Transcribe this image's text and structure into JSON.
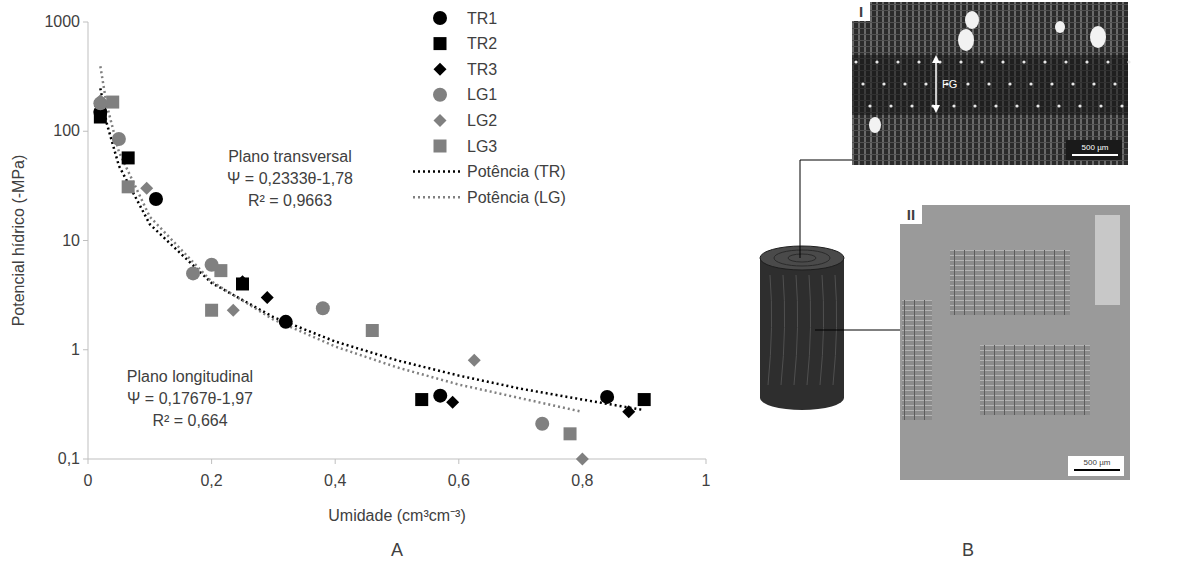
{
  "chart_data": {
    "type": "scatter",
    "x_label": "Umidade (cm³cm⁻³)",
    "y_label": "Potencial hídrico (-MPa)",
    "log": "y",
    "grid": false,
    "legend": "top-right",
    "xlim": [
      0,
      1
    ],
    "xticks": [
      0,
      {
        "value": 0.2,
        "label": "0,2"
      },
      {
        "value": 0.4,
        "label": "0,4"
      },
      {
        "value": 0.6,
        "label": "0,6"
      },
      {
        "value": 0.8,
        "label": "0,8"
      },
      1
    ],
    "ylim": [
      0.1,
      1000
    ],
    "yticks": [
      {
        "value": 0.1,
        "label": "0,1"
      },
      1,
      10,
      100,
      1000
    ],
    "series": [
      {
        "name": "TR1",
        "color": "#000000",
        "marker": "circle",
        "x": [
          0.02,
          0.11,
          0.32,
          0.57,
          0.84
        ],
        "values": [
          150,
          24,
          1.8,
          0.38,
          0.37
        ]
      },
      {
        "name": "TR2",
        "color": "#000000",
        "marker": "square",
        "x": [
          0.02,
          0.065,
          0.25,
          0.54,
          0.9
        ],
        "values": [
          135,
          57,
          4,
          0.35,
          0.35
        ]
      },
      {
        "name": "TR3",
        "color": "#000000",
        "marker": "diamond",
        "x": [
          0.02,
          0.25,
          0.29,
          0.59,
          0.875
        ],
        "values": [
          170,
          4.2,
          3,
          0.33,
          0.27
        ]
      },
      {
        "name": "LG1",
        "color": "#808080",
        "marker": "circle",
        "x": [
          0.02,
          0.05,
          0.17,
          0.2,
          0.38,
          0.735
        ],
        "values": [
          180,
          85,
          5,
          6,
          2.4,
          0.21
        ]
      },
      {
        "name": "LG2",
        "color": "#808080",
        "marker": "diamond",
        "x": [
          0.02,
          0.095,
          0.235,
          0.625,
          0.8
        ],
        "values": [
          190,
          30,
          2.3,
          0.8,
          0.1
        ]
      },
      {
        "name": "LG3",
        "color": "#808080",
        "marker": "square",
        "x": [
          0.04,
          0.065,
          0.2,
          0.215,
          0.46,
          0.78
        ],
        "values": [
          185,
          31,
          2.3,
          5.3,
          1.5,
          0.17
        ]
      },
      {
        "name": "Potência (TR)",
        "type": "line",
        "line_style": "dotted",
        "marker": "none",
        "color": "#000000",
        "x": [
          0.02,
          0.03,
          0.05,
          0.1,
          0.2,
          0.3,
          0.4,
          0.5,
          0.6,
          0.7,
          0.8,
          0.9
        ],
        "values": [
          247,
          120,
          48.3,
          14.1,
          4.09,
          1.99,
          1.19,
          0.8,
          0.58,
          0.44,
          0.35,
          0.28
        ]
      },
      {
        "name": "Potência (LG)",
        "type": "line",
        "line_style": "dotted",
        "marker": "none",
        "color": "#808080",
        "x": [
          0.02,
          0.03,
          0.05,
          0.1,
          0.2,
          0.3,
          0.4,
          0.5,
          0.6,
          0.7,
          0.8
        ],
        "values": [
          393,
          177,
          64.7,
          16.5,
          4.21,
          1.89,
          1.07,
          0.69,
          0.48,
          0.36,
          0.27
        ]
      }
    ],
    "annotations": [
      {
        "lines": [
          "Plano transversal",
          "Ψ = 0,2333θ-1,78",
          "R² = 0,9663"
        ]
      },
      {
        "lines": [
          "Plano longitudinal",
          "Ψ = 0,1767θ-1,97",
          "R² = 0,664"
        ]
      }
    ]
  },
  "panel_labels": [
    "A",
    "B"
  ],
  "panel_b": {
    "images": [
      {
        "label": "I",
        "annotation": "FG",
        "scale_bar": "500 µm"
      },
      {
        "label": "II",
        "scale_bar": "500 µm"
      }
    ]
  }
}
